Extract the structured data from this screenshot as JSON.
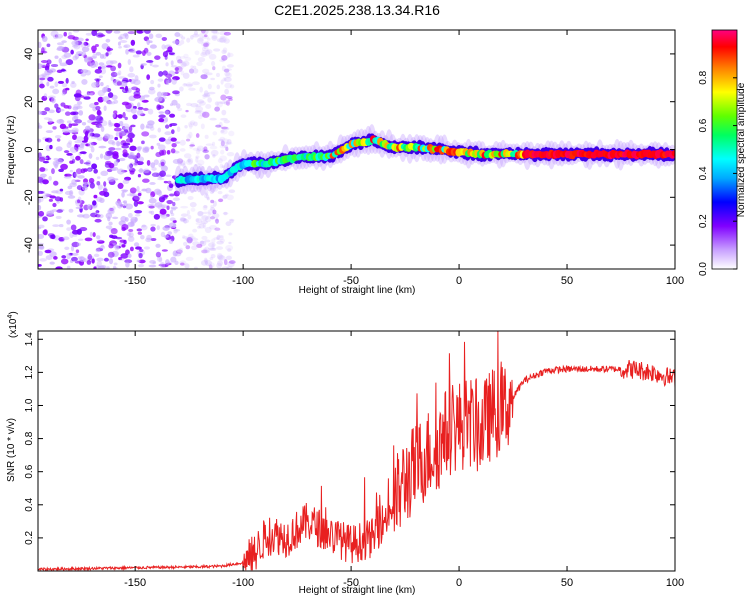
{
  "title": "C2E1.2025.238.13.34.R16",
  "chart_data": [
    {
      "type": "heatmap",
      "name": "spectrogram",
      "xlabel": "Height of straight line (km)",
      "ylabel": "Frequency (Hz)",
      "xlim": [
        -195,
        100
      ],
      "ylim": [
        -50,
        50
      ],
      "xticks": [
        -150,
        -100,
        -50,
        0,
        50,
        100
      ],
      "yticks": [
        -40,
        -20,
        0,
        20,
        40
      ],
      "noise_region_km": [
        -195,
        -105
      ],
      "signal_start_km": -130,
      "signal_trend": {
        "x": [
          -130,
          -110,
          -100,
          -90,
          -80,
          -70,
          -60,
          -50,
          -40,
          -30,
          -20,
          -10,
          0,
          10,
          20,
          40,
          60,
          80,
          100
        ],
        "y": [
          -13,
          -12,
          -6,
          -6,
          -4,
          -3,
          -3,
          2,
          4,
          1,
          1,
          0,
          -1,
          -2,
          -2,
          -2,
          -2,
          -2,
          -2
        ]
      },
      "colorbar": {
        "label": "Normalized spectral amplitude",
        "ticks": [
          0.0,
          0.2,
          0.4,
          0.6,
          0.8
        ],
        "tick_labels": [
          "0.0",
          "0.2",
          "0.4",
          "0.6",
          "0.8"
        ],
        "range": [
          0,
          1
        ],
        "colors": [
          "#ffffff",
          "#8000ff",
          "#0000ff",
          "#00ffff",
          "#00ff00",
          "#ffff00",
          "#ff8000",
          "#ff0000",
          "#ff0080"
        ]
      }
    },
    {
      "type": "line",
      "name": "snr",
      "xlabel": "Height of straight line (km)",
      "ylabel": "SNR (10 * v/v)",
      "scale_label": "(x10",
      "scale_exp": "4",
      "scale_close": ")",
      "xlim": [
        -195,
        100
      ],
      "ylim": [
        0,
        1.45
      ],
      "xticks": [
        -150,
        -100,
        -50,
        0,
        50,
        100
      ],
      "yticks": [
        0.2,
        0.4,
        0.6,
        0.8,
        1.0,
        1.2,
        1.4
      ],
      "ytick_labels": [
        "0.2",
        "0.4",
        "0.6",
        "0.8",
        "1.0",
        "1.2",
        "1.4"
      ],
      "color": "#e82020",
      "series": [
        {
          "name": "SNR envelope",
          "x": [
            -195,
            -150,
            -120,
            -110,
            -100,
            -95,
            -90,
            -85,
            -80,
            -75,
            -70,
            -60,
            -50,
            -40,
            -30,
            -25,
            -20,
            -15,
            -10,
            -5,
            0,
            5,
            10,
            15,
            20,
            25,
            30,
            40,
            50,
            60,
            70,
            80,
            90,
            95,
            100
          ],
          "y": [
            0.01,
            0.02,
            0.025,
            0.03,
            0.05,
            0.1,
            0.2,
            0.22,
            0.2,
            0.25,
            0.3,
            0.22,
            0.16,
            0.2,
            0.4,
            0.55,
            0.62,
            0.7,
            0.75,
            0.85,
            0.88,
            0.9,
            0.85,
            0.95,
            0.97,
            1.05,
            1.15,
            1.21,
            1.22,
            1.22,
            1.22,
            1.22,
            1.2,
            1.18,
            1.16
          ]
        }
      ]
    }
  ]
}
